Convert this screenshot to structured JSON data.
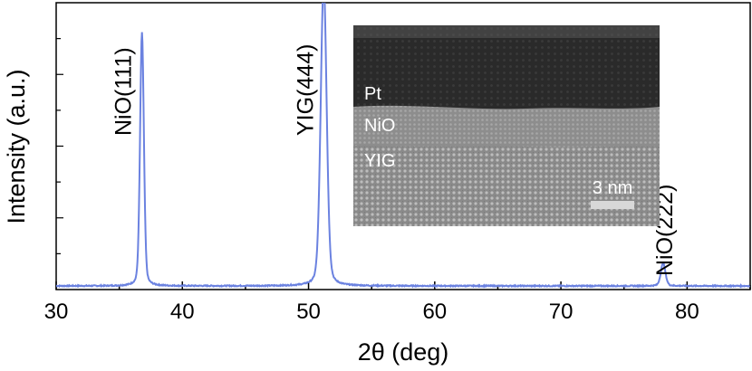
{
  "chart_data": {
    "type": "line",
    "xlabel": "2θ (deg)",
    "ylabel": "Intensity (a.u.)",
    "xlim": [
      30,
      85
    ],
    "x_ticks": [
      30,
      40,
      50,
      60,
      70,
      80
    ],
    "y_ticks_labeled": false,
    "line_color": "#6b82e0",
    "series": [
      {
        "peaks": [
          {
            "x": 36.8,
            "label": "NiO(111)",
            "height": 0.9
          },
          {
            "x": 51.2,
            "label": "YIG(444)",
            "height": 1.0
          },
          {
            "x": 78.1,
            "label": "NiO(222)",
            "height": 0.08
          }
        ]
      }
    ],
    "annotations": [
      "NiO(111)",
      "YIG(444)",
      "NiO(222)"
    ]
  },
  "inset": {
    "layers": [
      "Pt",
      "NiO",
      "YIG"
    ],
    "scale_bar_label": "3 nm"
  }
}
